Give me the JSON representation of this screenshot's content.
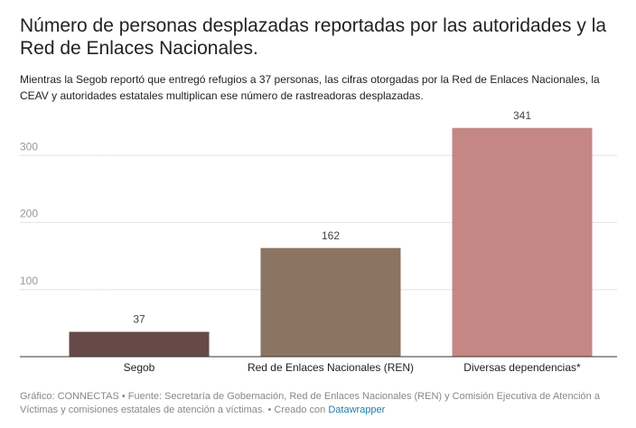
{
  "chart_data": {
    "type": "bar",
    "title": "Número de personas desplazadas reportadas por las autoridades y la Red de Enlaces Nacionales.",
    "subtitle": "Mientras la Segob reportó que entregó refugios a 37 personas, las cifras otorgadas por la Red de Enlaces Nacionales, la CEAV y autoridades estatales multiplican ese número de rastreadoras desplazadas.",
    "categories": [
      "Segob",
      "Red de Enlaces Nacionales (REN)",
      "Diversas dependencias*"
    ],
    "values": [
      37,
      162,
      341
    ],
    "colors": [
      "#654a47",
      "#8c7463",
      "#c48783"
    ],
    "ylim": [
      0,
      350
    ],
    "yticks": [
      100,
      200,
      300
    ],
    "grid": true,
    "footer": "Gráfico: CONNECTAS • Fuente: Secretaría de Gobernación, Red de Enlaces Nacionales (REN) y Comisión Ejecutiva de Atención a Víctimas y comisiones estatales de atención a víctimas. • Creado con",
    "footer_link": "Datawrapper"
  }
}
